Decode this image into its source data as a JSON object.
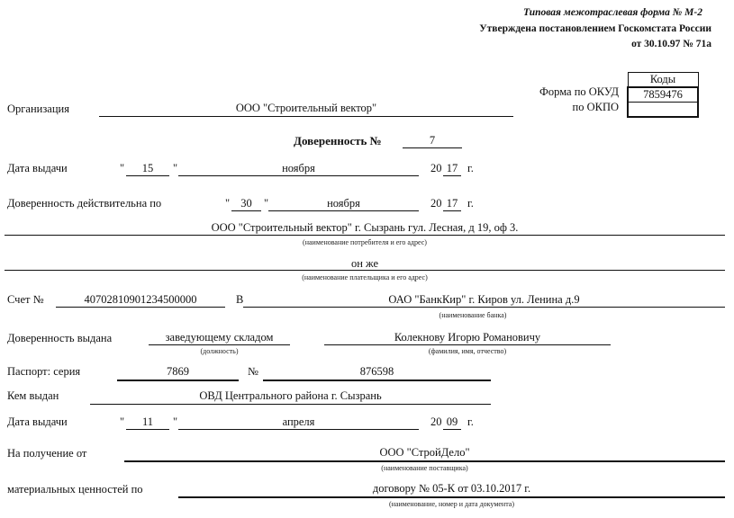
{
  "header": {
    "form_type": "Типовая межотраслевая форма № М-2",
    "approved": "Утверждена постановлением Госкомстата России",
    "approved_date": "от 30.10.97 № 71а"
  },
  "codes": {
    "title": "Коды",
    "okud_label": "Форма по ОКУД",
    "okud_value": "7859476",
    "okpo_label": "по ОКПО",
    "okpo_value": ""
  },
  "organization": {
    "label": "Организация",
    "value": "ООО \"Строительный вектор\""
  },
  "doc": {
    "title": "Доверенность №",
    "number": "7"
  },
  "issue_date": {
    "label": "Дата выдачи",
    "day": "15",
    "month": "ноября",
    "year_prefix": "20",
    "year": "17",
    "year_suffix": "г."
  },
  "valid_until": {
    "label": "Доверенность действительна по",
    "day": "30",
    "month": "ноября",
    "year_prefix": "20",
    "year": "17",
    "year_suffix": "г."
  },
  "consumer": {
    "value": "ООО \"Строительный вектор\" г. Сызрань гул. Лесная, д 19, оф 3.",
    "caption": "(наименование потребителя и его адрес)"
  },
  "payer": {
    "value": "он же",
    "caption": "(наименование плательщика и его адрес)"
  },
  "account": {
    "label": "Счет №",
    "value": "40702810901234500000",
    "in_label": "В",
    "bank": "ОАО \"БанкКир\" г. Киров ул. Ленина д.9",
    "bank_caption": "(наименование банка)"
  },
  "issued_to": {
    "label": "Доверенность выдана",
    "position": "заведующему складом",
    "position_caption": "(должность)",
    "name": "Колекнову Игорю Романовичу",
    "name_caption": "(фамилия, имя, отчество)"
  },
  "passport": {
    "label": "Паспорт:  серия",
    "series": "7869",
    "number_label": "№",
    "number": "876598"
  },
  "issued_by": {
    "label": "Кем выдан",
    "value": "ОВД Центрального района г. Сызрань"
  },
  "passport_date": {
    "label": "Дата выдачи",
    "day": "11",
    "month": "апреля",
    "year_prefix": "20",
    "year": "09",
    "year_suffix": "г."
  },
  "supplier": {
    "label": "На получение от",
    "value": "ООО \"СтройДело\"",
    "caption": "(наименование поставщика)"
  },
  "materials": {
    "label": "материальных ценностей по",
    "value": "договору № 05-К от 03.10.2017 г.",
    "caption": "(наименование, номер и дата документа)"
  },
  "quote": "\""
}
